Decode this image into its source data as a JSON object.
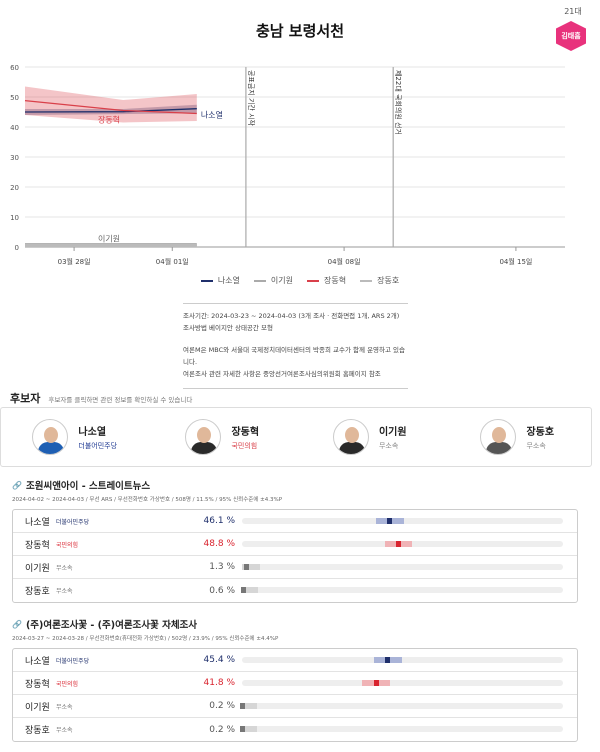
{
  "page": {
    "title": "충남 보령서천",
    "badge_number": "21대",
    "badge_label": "김태흠"
  },
  "chart_data": {
    "type": "line",
    "ylim": [
      0,
      60
    ],
    "yticks": [
      0,
      10,
      20,
      30,
      40,
      50,
      60
    ],
    "x_range": [
      "2024-03-26",
      "2024-04-17"
    ],
    "xticks": [
      {
        "date": "2024-03-28",
        "label": "03월 28일"
      },
      {
        "date": "2024-04-01",
        "label": "04월 01일"
      },
      {
        "date": "2024-04-08",
        "label": "04월 08일"
      },
      {
        "date": "2024-04-15",
        "label": "04월 15일"
      }
    ],
    "events": [
      {
        "date": "2024-04-04",
        "label": "공표금지 기간 시작"
      },
      {
        "date": "2024-04-10",
        "label": "제22대 국회의원 선거"
      }
    ],
    "series": [
      {
        "name": "나소열",
        "color": "#1f2f6b",
        "dates": [
          "2024-03-26",
          "2024-03-30",
          "2024-04-02"
        ],
        "values": [
          45.0,
          45.1,
          46.1
        ],
        "band_lo": [
          44.0,
          44.3,
          44.6
        ],
        "band_hi": [
          46.0,
          46.0,
          47.4
        ],
        "label_position": "end"
      },
      {
        "name": "장동혁",
        "color": "#d9404a",
        "dates": [
          "2024-03-26",
          "2024-03-30",
          "2024-04-02"
        ],
        "values": [
          48.8,
          45.5,
          44.5
        ],
        "band_lo": [
          44.0,
          41.5,
          42.0
        ],
        "band_hi": [
          53.5,
          49.0,
          51.0
        ],
        "label_position": "start"
      },
      {
        "name": "이기원",
        "color": "#aaaaaa",
        "dates": [
          "2024-03-26",
          "2024-04-02"
        ],
        "values": [
          0.8,
          0.8
        ],
        "label_position": "start"
      },
      {
        "name": "장동호",
        "color": "#bbbbbb",
        "dates": [
          "2024-03-26",
          "2024-04-02"
        ],
        "values": [
          0.5,
          0.5
        ]
      }
    ]
  },
  "legend": [
    "나소열",
    "이기원",
    "장동혁",
    "장동호"
  ],
  "info": {
    "line1": "조사기간: 2024-03-23 ~ 2024-04-03 (3개 조사 · 전화면접 1개, ARS 2개)",
    "line2": "조사방법 베이지안 상태공간 모형",
    "line3": "여론M은 MBC와 서울대 국제정치데이터센터의 박종희 교수가 함께 운영하고 있습니다.",
    "line4": "여론조사 관련 자세한 사항은 중앙선거여론조사심의위원회 홈페이지 참조"
  },
  "candidates_header": {
    "title": "후보자",
    "subtitle": "후보자를 클릭하면 관련 정보를 확인하실 수 있습니다"
  },
  "candidates": [
    {
      "name": "나소열",
      "party": "더불어민주당",
      "party_color": "#1f3a93",
      "suit_color": "#1e5fb3"
    },
    {
      "name": "장동혁",
      "party": "국민의힘",
      "party_color": "#d9404a",
      "suit_color": "#2a2a2a"
    },
    {
      "name": "이기원",
      "party": "무소속",
      "party_color": "#888888",
      "suit_color": "#2a2a2a"
    },
    {
      "name": "장동호",
      "party": "무소속",
      "party_color": "#888888",
      "suit_color": "#555555"
    }
  ],
  "polls": [
    {
      "title": "조원씨앤아이 - 스트레이트뉴스",
      "subtitle": "2024-04-02 ~ 2024-04-03 / 무선 ARS / 무선전화번호 가상번호 / 508명 / 11.5% / 95% 신뢰수준에 ±4.3%P",
      "rows": [
        {
          "name": "나소열",
          "party": "더불어민주당",
          "value_label": "46.1 %",
          "value": 46.1,
          "ci_lo": 41.8,
          "ci_hi": 50.4,
          "color": "#1f2f6b",
          "ci_color": "#aab4d8"
        },
        {
          "name": "장동혁",
          "party": "국민의힘",
          "value_label": "48.8 %",
          "value": 48.8,
          "ci_lo": 44.5,
          "ci_hi": 53.1,
          "color": "#d9232e",
          "ci_color": "#f0b3b6"
        },
        {
          "name": "이기원",
          "party": "무소속",
          "value_label": "1.3 %",
          "value": 1.3,
          "ci_lo": 0,
          "ci_hi": 5.6,
          "color": "#777777",
          "ci_color": "#d6d6d6"
        },
        {
          "name": "장동호",
          "party": "무소속",
          "value_label": "0.6 %",
          "value": 0.6,
          "ci_lo": 0,
          "ci_hi": 4.9,
          "color": "#777777",
          "ci_color": "#d6d6d6"
        }
      ]
    },
    {
      "title": "(주)여론조사꽃 - (주)여론조사꽃 자체조사",
      "subtitle": "2024-03-27 ~ 2024-03-28 / 무선전화번호(휴대전화 가상번호) / 502명 / 23.9% / 95% 신뢰수준에 ±4.4%P",
      "rows": [
        {
          "name": "나소열",
          "party": "더불어민주당",
          "value_label": "45.4 %",
          "value": 45.4,
          "ci_lo": 41.0,
          "ci_hi": 49.8,
          "color": "#1f2f6b",
          "ci_color": "#aab4d8"
        },
        {
          "name": "장동혁",
          "party": "국민의힘",
          "value_label": "41.8 %",
          "value": 41.8,
          "ci_lo": 37.4,
          "ci_hi": 46.2,
          "color": "#d9232e",
          "ci_color": "#f0b3b6"
        },
        {
          "name": "이기원",
          "party": "무소속",
          "value_label": "0.2 %",
          "value": 0.2,
          "ci_lo": 0,
          "ci_hi": 4.6,
          "color": "#777777",
          "ci_color": "#d6d6d6"
        },
        {
          "name": "장동호",
          "party": "무소속",
          "value_label": "0.2 %",
          "value": 0.2,
          "ci_lo": 0,
          "ci_hi": 4.6,
          "color": "#777777",
          "ci_color": "#d6d6d6"
        }
      ]
    }
  ]
}
